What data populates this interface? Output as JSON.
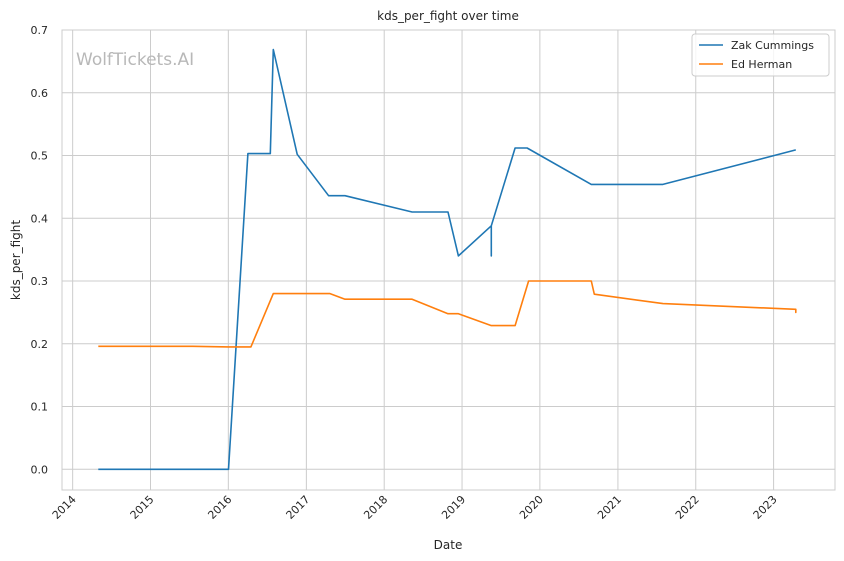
{
  "chart_data": {
    "type": "line",
    "title": "kds_per_fight over time",
    "xlabel": "Date",
    "ylabel": "kds_per_fight",
    "watermark": "WolfTickets.AI",
    "xlim": [
      "2013-11-12",
      "2023-10-16"
    ],
    "ylim": [
      -0.033,
      0.7
    ],
    "x_ticks": [
      "2014",
      "2015",
      "2016",
      "2017",
      "2018",
      "2019",
      "2020",
      "2021",
      "2022",
      "2023"
    ],
    "y_ticks": [
      "0.0",
      "0.1",
      "0.2",
      "0.3",
      "0.4",
      "0.5",
      "0.6",
      "0.7"
    ],
    "grid": true,
    "legend_position": "top-right",
    "series": [
      {
        "name": "Zak Cummings",
        "color": "#1f77b4",
        "points": [
          [
            "2014-05-01",
            0.0
          ],
          [
            "2016-01-02",
            0.0
          ],
          [
            "2016-04-02",
            0.503
          ],
          [
            "2016-07-16",
            0.503
          ],
          [
            "2016-07-30",
            0.669
          ],
          [
            "2016-11-19",
            0.502
          ],
          [
            "2017-04-15",
            0.436
          ],
          [
            "2017-07-01",
            0.436
          ],
          [
            "2018-05-12",
            0.41
          ],
          [
            "2018-10-27",
            0.41
          ],
          [
            "2018-12-15",
            0.34
          ],
          [
            "2019-05-18",
            0.388
          ],
          [
            "2019-05-18",
            0.34
          ],
          [
            "2019-05-18",
            0.388
          ],
          [
            "2019-09-07",
            0.512
          ],
          [
            "2019-11-02",
            0.512
          ],
          [
            "2020-08-29",
            0.454
          ],
          [
            "2021-07-31",
            0.454
          ],
          [
            "2023-04-15",
            0.509
          ]
        ]
      },
      {
        "name": "Ed Herman",
        "color": "#ff7f0e",
        "points": [
          [
            "2014-05-01",
            0.196
          ],
          [
            "2015-07-18",
            0.196
          ],
          [
            "2016-01-02",
            0.195
          ],
          [
            "2016-04-16",
            0.195
          ],
          [
            "2016-07-30",
            0.28
          ],
          [
            "2017-04-22",
            0.28
          ],
          [
            "2017-07-01",
            0.271
          ],
          [
            "2018-05-12",
            0.271
          ],
          [
            "2018-10-27",
            0.248
          ],
          [
            "2018-12-15",
            0.248
          ],
          [
            "2019-05-18",
            0.229
          ],
          [
            "2019-09-07",
            0.229
          ],
          [
            "2019-11-09",
            0.3
          ],
          [
            "2020-08-29",
            0.3
          ],
          [
            "2020-09-12",
            0.279
          ],
          [
            "2021-07-31",
            0.264
          ],
          [
            "2023-04-15",
            0.255
          ],
          [
            "2023-04-15",
            0.25
          ],
          [
            "2023-04-15",
            0.255
          ]
        ]
      }
    ]
  }
}
